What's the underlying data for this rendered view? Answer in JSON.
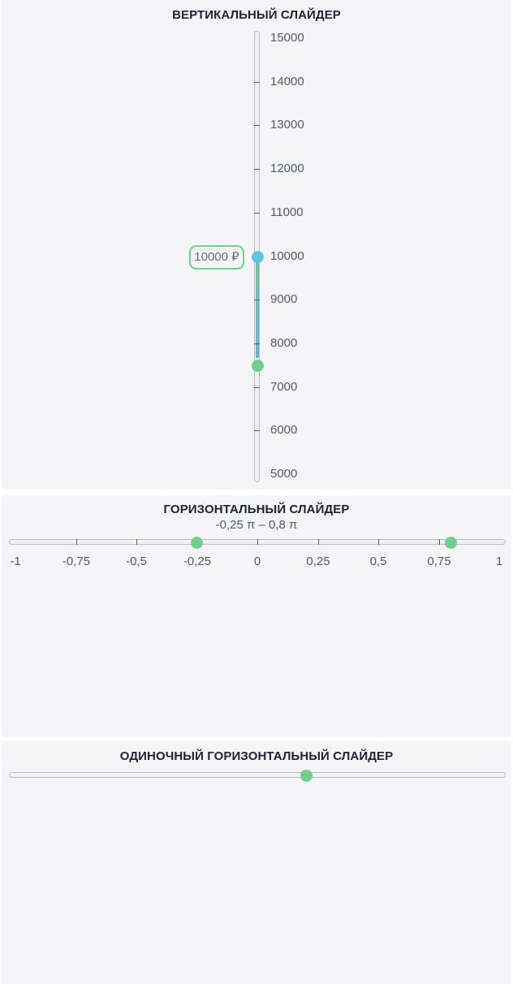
{
  "vertical_slider": {
    "title": "ВЕРТИКАЛЬНЫЙ СЛАЙДЕР",
    "min": 5000,
    "max": 15000,
    "lower_value": 7500,
    "upper_value": 10000,
    "tooltip": "10000 ₽",
    "tick_labels": [
      "15000",
      "14000",
      "13000",
      "12000",
      "11000",
      "10000",
      "9000",
      "8000",
      "7000",
      "6000",
      "5000"
    ],
    "colors": {
      "lower_handle": "#6fcf8d",
      "upper_handle": "#5ec6e3"
    }
  },
  "horizontal_slider": {
    "title": "ГОРИЗОНТАЛЬНЫЙ СЛАЙДЕР",
    "range_text": "-0,25 π – 0,8 π",
    "min": -1,
    "max": 1,
    "lower_value": -0.25,
    "upper_value": 0.8,
    "tick_labels": [
      "-1",
      "-0,75",
      "-0,5",
      "-0,25",
      "0",
      "0,25",
      "0,5",
      "0,75",
      "1"
    ],
    "colors": {
      "handle": "#6fcf8d"
    }
  },
  "single_slider": {
    "title": "ОДИНОЧНЫЙ ГОРИЗОНТАЛЬНЫЙ СЛАЙДЕР",
    "value_fraction": 0.6,
    "colors": {
      "handle": "#6fcf8d"
    }
  }
}
